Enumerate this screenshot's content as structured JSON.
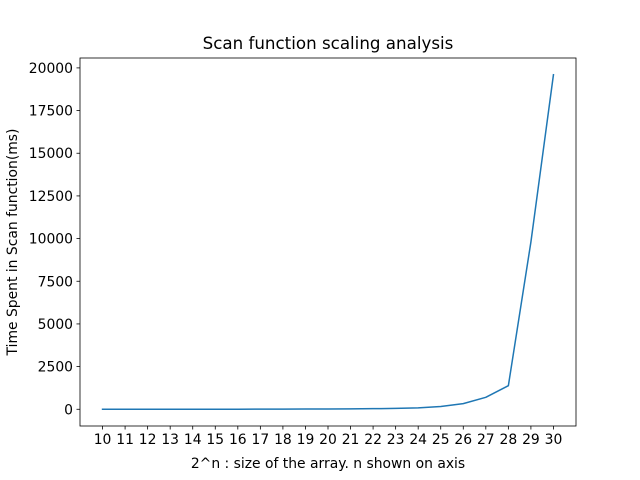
{
  "chart_data": {
    "type": "line",
    "title": "Scan function scaling analysis",
    "xlabel": "2^n : size of the array. n shown on axis",
    "ylabel": "Time Spent in Scan function(ms)",
    "x": [
      10,
      11,
      12,
      13,
      14,
      15,
      16,
      17,
      18,
      19,
      20,
      21,
      22,
      23,
      24,
      25,
      26,
      27,
      28,
      29,
      30
    ],
    "series": [
      {
        "values": [
          0.5,
          1,
          1.5,
          2,
          3,
          4,
          5,
          7,
          9,
          13,
          18,
          25,
          35,
          50,
          80,
          160,
          330,
          700,
          1380,
          9800,
          19600
        ],
        "color": "#1f77b4"
      }
    ],
    "xticks": [
      10,
      11,
      12,
      13,
      14,
      15,
      16,
      17,
      18,
      19,
      20,
      21,
      22,
      23,
      24,
      25,
      26,
      27,
      28,
      29,
      30
    ],
    "yticks": [
      0,
      2500,
      5000,
      7500,
      10000,
      12500,
      15000,
      17500,
      20000
    ],
    "xlim": [
      9,
      31
    ],
    "ylim": [
      -980,
      20580
    ],
    "grid": false,
    "legend": "none"
  }
}
